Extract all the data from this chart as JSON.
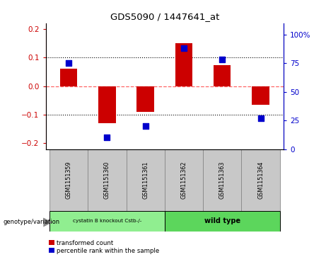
{
  "title": "GDS5090 / 1447641_at",
  "samples": [
    "GSM1151359",
    "GSM1151360",
    "GSM1151361",
    "GSM1151362",
    "GSM1151363",
    "GSM1151364"
  ],
  "red_values": [
    0.062,
    -0.13,
    -0.09,
    0.15,
    0.072,
    -0.065
  ],
  "blue_values": [
    75,
    10,
    20,
    88,
    78,
    27
  ],
  "ylim_left": [
    -0.22,
    0.22
  ],
  "ylim_right": [
    0,
    110
  ],
  "yticks_left": [
    -0.2,
    -0.1,
    0.0,
    0.1,
    0.2
  ],
  "yticks_right": [
    0,
    25,
    50,
    75,
    100
  ],
  "ytick_labels_right": [
    "0",
    "25",
    "50",
    "75",
    "100%"
  ],
  "group1_label": "cystatin B knockout Cstb-/-",
  "group2_label": "wild type",
  "group1_color": "#90EE90",
  "group2_color": "#5CD65C",
  "genotype_label": "genotype/variation",
  "legend_red": "transformed count",
  "legend_blue": "percentile rank within the sample",
  "red_color": "#CC0000",
  "blue_color": "#0000CC",
  "zero_line_color": "#FF6666",
  "grid_color": "#000000",
  "bar_width": 0.45,
  "blue_marker_size": 6,
  "cell_color": "#C8C8C8",
  "cell_edge": "#888888"
}
